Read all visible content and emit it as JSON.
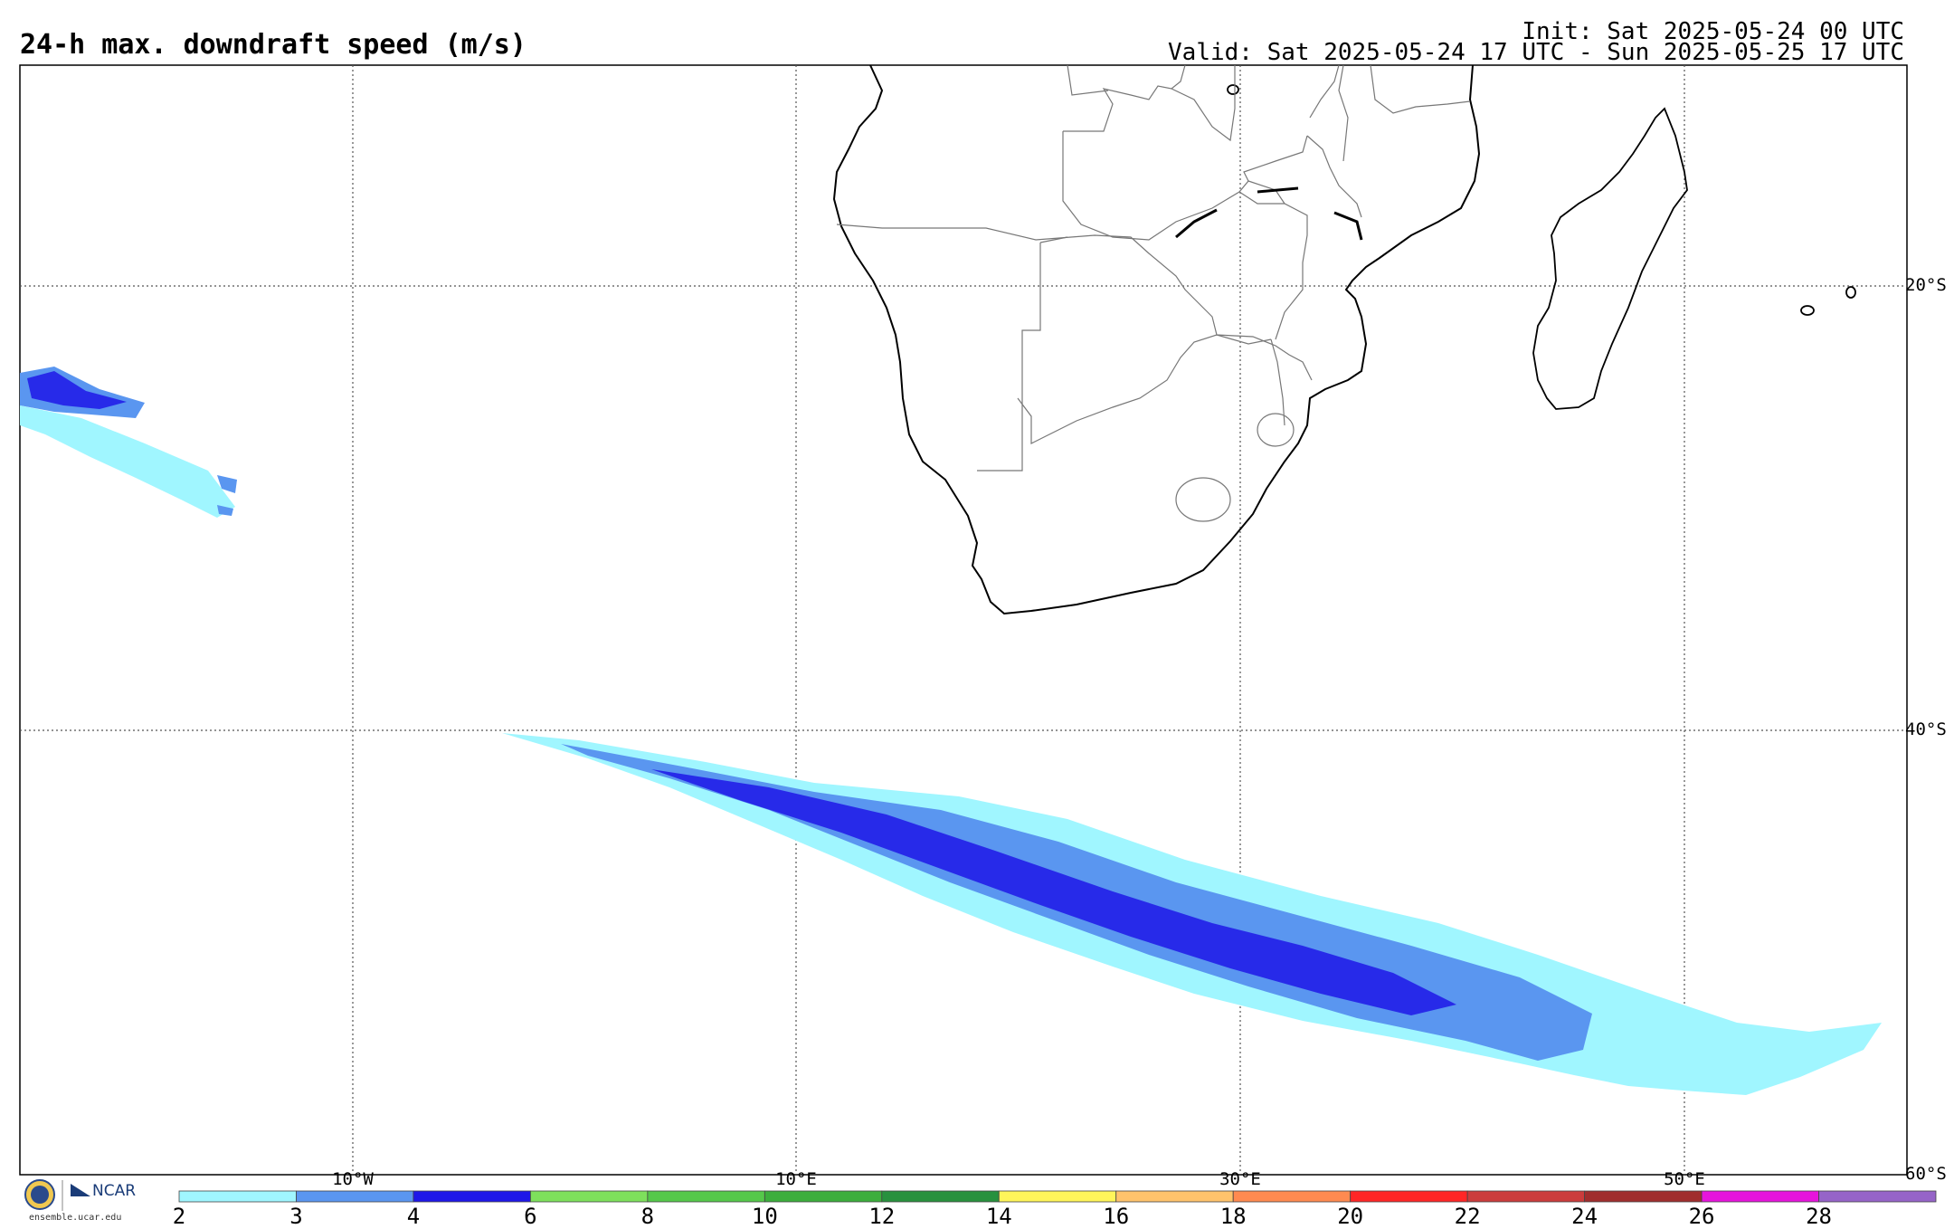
{
  "header": {
    "title": "24-h max. downdraft speed (m/s)",
    "init": "Init: Sat 2025-05-24 00 UTC",
    "valid": "Valid: Sat 2025-05-24 17 UTC - Sun 2025-05-25 17 UTC"
  },
  "map": {
    "lat_labels": [
      "20°S",
      "40°S",
      "60°S"
    ],
    "lon_labels": [
      "10°W",
      "10°E",
      "30°E",
      "50°E"
    ],
    "features": [
      "africa-coastline",
      "country-borders",
      "madagascar",
      "downdraft-band"
    ]
  },
  "colorbar": {
    "labels": [
      "2",
      "3",
      "4",
      "6",
      "8",
      "10",
      "12",
      "14",
      "16",
      "18",
      "20",
      "22",
      "24",
      "26",
      "28"
    ],
    "colors": [
      "#a0f6ff",
      "#5a96f0",
      "#1e17e8",
      "#7ee05c",
      "#55c84a",
      "#3cae3c",
      "#28913e",
      "#fff55a",
      "#ffc36c",
      "#ff8a50",
      "#ff2626",
      "#cb3c3c",
      "#a02d2d",
      "#e614dc",
      "#9664c8"
    ]
  },
  "logo": {
    "nsf": "NSF",
    "ncar": "NCAR",
    "url": "ensemble.ucar.edu"
  }
}
